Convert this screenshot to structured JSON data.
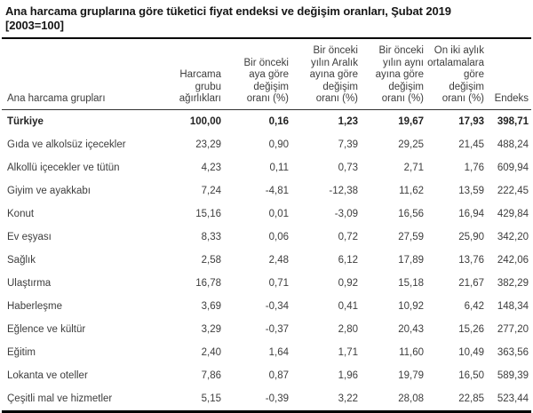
{
  "title": {
    "line1": "Ana harcama gruplarına göre tüketici fiyat endeksi ve değişim oranları, Şubat 2019",
    "line2": "[2003=100]"
  },
  "chart_data": {
    "type": "table",
    "title": "Ana harcama gruplarına göre tüketici fiyat endeksi ve değişim oranları, Şubat 2019 [2003=100]",
    "row_header": "Ana harcama grupları",
    "columns": [
      "Harcama\ngrubu\nağırlıkları",
      "Bir önceki\naya göre\ndeğişim\noranı (%)",
      "Bir önceki\nyılın Aralık\nayına göre\ndeğişim\noranı (%)",
      "Bir önceki\nyılın aynı\nayına göre\ndeğişim\noranı (%)",
      "On iki aylık\nortalamalara\ngöre\ndeğişim\noranı (%)",
      "Endeks"
    ],
    "rows": [
      {
        "label": "Türkiye",
        "bold": true,
        "values": [
          "100,00",
          "0,16",
          "1,23",
          "19,67",
          "17,93",
          "398,71"
        ]
      },
      {
        "label": "Gıda ve alkolsüz içecekler",
        "bold": false,
        "values": [
          "23,29",
          "0,90",
          "7,39",
          "29,25",
          "21,45",
          "488,24"
        ]
      },
      {
        "label": "Alkollü içecekler ve tütün",
        "bold": false,
        "values": [
          "4,23",
          "0,11",
          "0,73",
          "2,71",
          "1,76",
          "609,94"
        ]
      },
      {
        "label": "Giyim ve ayakkabı",
        "bold": false,
        "values": [
          "7,24",
          "-4,81",
          "-12,38",
          "11,62",
          "13,59",
          "222,45"
        ]
      },
      {
        "label": "Konut",
        "bold": false,
        "values": [
          "15,16",
          "0,01",
          "-3,09",
          "16,56",
          "16,94",
          "429,84"
        ]
      },
      {
        "label": "Ev eşyası",
        "bold": false,
        "values": [
          "8,33",
          "0,06",
          "0,72",
          "27,59",
          "25,90",
          "342,20"
        ]
      },
      {
        "label": "Sağlık",
        "bold": false,
        "values": [
          "2,58",
          "2,48",
          "6,12",
          "17,89",
          "13,76",
          "242,06"
        ]
      },
      {
        "label": "Ulaştırma",
        "bold": false,
        "values": [
          "16,78",
          "0,71",
          "0,92",
          "15,18",
          "21,67",
          "382,29"
        ]
      },
      {
        "label": "Haberleşme",
        "bold": false,
        "values": [
          "3,69",
          "-0,34",
          "0,41",
          "10,92",
          "6,42",
          "148,34"
        ]
      },
      {
        "label": "Eğlence ve kültür",
        "bold": false,
        "values": [
          "3,29",
          "-0,37",
          "2,80",
          "20,43",
          "15,26",
          "277,20"
        ]
      },
      {
        "label": "Eğitim",
        "bold": false,
        "values": [
          "2,40",
          "1,64",
          "1,71",
          "11,60",
          "10,49",
          "363,56"
        ]
      },
      {
        "label": "Lokanta ve oteller",
        "bold": false,
        "values": [
          "7,86",
          "0,87",
          "1,96",
          "19,79",
          "16,50",
          "589,39"
        ]
      },
      {
        "label": "Çeşitli mal ve hizmetler",
        "bold": false,
        "values": [
          "5,15",
          "-0,39",
          "3,22",
          "28,08",
          "22,85",
          "523,44"
        ]
      }
    ]
  }
}
